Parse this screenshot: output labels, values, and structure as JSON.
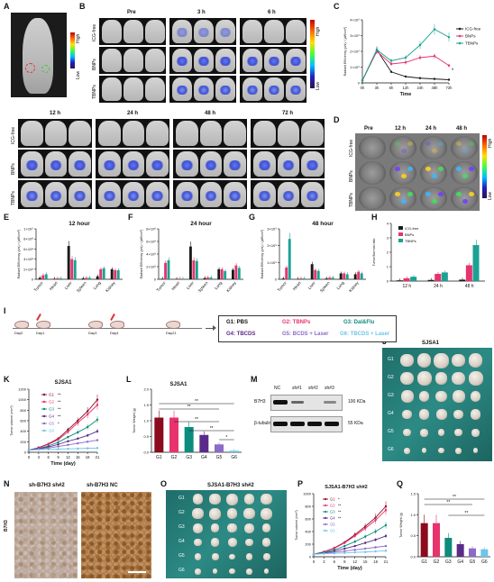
{
  "panels": {
    "A": "A",
    "B": "B",
    "C": "C",
    "D": "D",
    "E": "E",
    "F": "F",
    "G": "G",
    "H": "H",
    "I": "I",
    "J": "J",
    "K": "K",
    "L": "L",
    "M": "M",
    "N": "N",
    "O": "O",
    "P": "P",
    "Q": "Q"
  },
  "colorbar": {
    "high": "High",
    "low": "Low"
  },
  "panelB": {
    "times_top": [
      "Pre",
      "3 h",
      "6 h"
    ],
    "times_bottom": [
      "12 h",
      "24 h",
      "48 h",
      "72 h"
    ],
    "rows": [
      "ICG-free",
      "BNPs",
      "TBNPs"
    ]
  },
  "panelD": {
    "times": [
      "Pre",
      "12 h",
      "24 h",
      "48 h"
    ],
    "rows": [
      "ICG-free",
      "BNPs",
      "TBNPs"
    ]
  },
  "colors": {
    "icg": "#1a1a1a",
    "bnp": "#e8336d",
    "tbnp": "#1aa294",
    "g1": "#8b0a1e",
    "g2": "#e8336d",
    "g3": "#0c8c7c",
    "g4": "#5a2a8a",
    "g5": "#8a6bc8",
    "g6": "#6fc4e8"
  },
  "panelI": {
    "days": [
      "Day0",
      "Day1",
      "Day3",
      "Day4",
      "Day21"
    ],
    "groups": [
      {
        "label": "G1: PBS",
        "color": "#111111"
      },
      {
        "label": "G2: TBNPs",
        "color": "#e8336d"
      },
      {
        "label": "G3: Dal&Flu",
        "color": "#0c8c7c"
      },
      {
        "label": "G4: TBCDS",
        "color": "#5a2a8a"
      },
      {
        "label": "G5: BCDS + Laser",
        "color": "#8a6bc8"
      },
      {
        "label": "G6: TBCDS + Laser",
        "color": "#6fc4e8"
      }
    ]
  },
  "panelJ": {
    "title": "SJSA1",
    "rows": [
      "G1",
      "G2",
      "G3",
      "G4",
      "G5",
      "G6"
    ]
  },
  "panelO": {
    "title": "SJSA1-B7H3 sh#2",
    "rows": [
      "G1",
      "G2",
      "G3",
      "G4",
      "G5",
      "G6"
    ]
  },
  "panelM": {
    "lanes": [
      "NC",
      "sh#1",
      "sh#2",
      "sh#3"
    ],
    "proteins": [
      "B7H3",
      "β-tubulin"
    ],
    "sizes": [
      "100 KDa",
      "55 KDa"
    ]
  },
  "panelN": {
    "labels": [
      "sh-B7H3 sh#2",
      "sh-B7H3 NC"
    ],
    "ylabel": "B7H3"
  },
  "chart_data": [
    {
      "id": "C",
      "type": "line",
      "xlabel": "Time",
      "ylabel": "Radiant Efficiency (p/s) / (µW/cm²)",
      "categories": [
        "0h",
        "3h",
        "6h",
        "12h",
        "24h",
        "48h",
        "72h"
      ],
      "yticks": [
        "0",
        "1×10⁹",
        "2×10⁹",
        "3×10⁹",
        "4×10⁹"
      ],
      "ylim": [
        0,
        4
      ],
      "series": [
        {
          "name": "ICG-free",
          "values": [
            0.15,
            2.1,
            0.7,
            0.4,
            0.3,
            0.25,
            0.2
          ]
        },
        {
          "name": "BNPs",
          "values": [
            0.15,
            2.0,
            1.2,
            1.3,
            1.6,
            1.7,
            1.1
          ]
        },
        {
          "name": "TBNPs",
          "values": [
            0.15,
            2.1,
            1.4,
            1.6,
            2.4,
            3.4,
            2.9
          ]
        }
      ],
      "annotation": "*"
    },
    {
      "id": "E",
      "type": "bar",
      "title": "12 hour",
      "ylabel": "Radiant Efficiency (p/s) / (µW/cm²)",
      "categories": [
        "Tumor",
        "Heart",
        "Liver",
        "Spleen",
        "Lung",
        "Kidney"
      ],
      "yticks": [
        "0",
        "2×10⁸",
        "4×10⁸",
        "6×10⁸",
        "8×10⁸",
        "1×10⁹"
      ],
      "ylim": [
        0,
        1
      ],
      "series": [
        {
          "name": "ICG-free",
          "values": [
            0.03,
            0.01,
            0.66,
            0.02,
            0.06,
            0.2
          ]
        },
        {
          "name": "BNPs",
          "values": [
            0.08,
            0.02,
            0.4,
            0.03,
            0.2,
            0.18
          ]
        },
        {
          "name": "TBNPs",
          "values": [
            0.1,
            0.02,
            0.38,
            0.03,
            0.22,
            0.18
          ]
        }
      ]
    },
    {
      "id": "F",
      "type": "bar",
      "title": "24 hour",
      "ylabel": "Radiant Efficiency (p/s) / (µW/cm²)",
      "categories": [
        "Tumor",
        "Heart",
        "Liver",
        "Spleen",
        "Lung",
        "Kidney"
      ],
      "yticks": [
        "0",
        "2×10⁸",
        "4×10⁸",
        "6×10⁸",
        "8×10⁸"
      ],
      "ylim": [
        0,
        8
      ],
      "series": [
        {
          "name": "ICG-free",
          "values": [
            0.1,
            0.05,
            5.2,
            0.2,
            1.6,
            1.5
          ]
        },
        {
          "name": "BNPs",
          "values": [
            2.6,
            0.1,
            3.0,
            0.3,
            1.6,
            2.2
          ]
        },
        {
          "name": "TBNPs",
          "values": [
            3.0,
            0.1,
            2.9,
            0.3,
            1.3,
            1.8
          ]
        }
      ]
    },
    {
      "id": "G",
      "type": "bar",
      "title": "48 hour",
      "ylabel": "Radiant Efficiency (p/s) / (µW/cm²)",
      "categories": [
        "Tumor",
        "Heart",
        "Liver",
        "Spleen",
        "Lung",
        "Kidney"
      ],
      "yticks": [
        "0",
        "1×10⁹",
        "2×10⁹",
        "3×10⁹"
      ],
      "ylim": [
        0,
        3
      ],
      "series": [
        {
          "name": "ICG-free",
          "values": [
            0.05,
            0.02,
            0.9,
            0.05,
            0.35,
            0.3
          ]
        },
        {
          "name": "BNPs",
          "values": [
            0.7,
            0.05,
            0.55,
            0.1,
            0.35,
            0.45
          ]
        },
        {
          "name": "TBNPs",
          "values": [
            2.4,
            0.05,
            0.5,
            0.1,
            0.3,
            0.35
          ]
        }
      ]
    },
    {
      "id": "H",
      "type": "bar",
      "ylabel": "Tumor/Normal ratio",
      "categories": [
        "12 h",
        "24 h",
        "48 h"
      ],
      "yticks": [
        "0",
        "1",
        "2",
        "3",
        "4"
      ],
      "ylim": [
        0,
        4
      ],
      "series": [
        {
          "name": "ICG-free",
          "values": [
            0.05,
            0.08,
            0.1
          ]
        },
        {
          "name": "BNPs",
          "values": [
            0.2,
            0.5,
            1.1
          ]
        },
        {
          "name": "TBNPs",
          "values": [
            0.3,
            0.6,
            2.5
          ]
        }
      ]
    },
    {
      "id": "K",
      "type": "line",
      "title": "SJSA1",
      "xlabel": "Time (day)",
      "ylabel": "Tumor volume (mm³)",
      "x": [
        0,
        3,
        6,
        9,
        12,
        15,
        18,
        21
      ],
      "xticks": [
        "0",
        "3",
        "6",
        "9",
        "12",
        "15",
        "18",
        "21"
      ],
      "yticks": [
        "0",
        "200",
        "400",
        "600",
        "800",
        "1000",
        "1200"
      ],
      "ylim": [
        0,
        1200
      ],
      "series": [
        {
          "name": "G1",
          "sig": "**",
          "values": [
            40,
            90,
            160,
            260,
            430,
            600,
            780,
            1000
          ]
        },
        {
          "name": "G2",
          "sig": "**",
          "values": [
            40,
            85,
            150,
            240,
            390,
            560,
            720,
            900
          ]
        },
        {
          "name": "G3",
          "sig": "**",
          "values": [
            40,
            75,
            120,
            190,
            290,
            380,
            480,
            620
          ]
        },
        {
          "name": "G4",
          "sig": "**",
          "values": [
            40,
            70,
            100,
            150,
            210,
            260,
            320,
            400
          ]
        },
        {
          "name": "G5",
          "sig": "*",
          "values": [
            40,
            60,
            80,
            110,
            140,
            170,
            200,
            230
          ]
        },
        {
          "name": "G6",
          "sig": "",
          "values": [
            40,
            50,
            55,
            60,
            65,
            70,
            75,
            80
          ]
        }
      ]
    },
    {
      "id": "L",
      "type": "bar",
      "title": "SJSA1",
      "ylabel": "Tumor Weight (g)",
      "categories": [
        "G1",
        "G2",
        "G3",
        "G4",
        "G5",
        "G6"
      ],
      "yticks": [
        "0.0",
        "0.5",
        "1.0",
        "1.5",
        "2.0"
      ],
      "ylim": [
        0,
        2
      ],
      "values": [
        1.1,
        1.1,
        0.8,
        0.55,
        0.25,
        0.05
      ],
      "annotations": [
        "**",
        "**",
        "**",
        "**",
        "*"
      ]
    },
    {
      "id": "P",
      "type": "line",
      "title": "SJSA1-B7H3 sh#2",
      "xlabel": "Time (day)",
      "ylabel": "Tumor volume (mm³)",
      "x": [
        0,
        3,
        6,
        9,
        12,
        15,
        18,
        21
      ],
      "xticks": [
        "0",
        "3",
        "6",
        "9",
        "12",
        "15",
        "18",
        "21"
      ],
      "yticks": [
        "0",
        "200",
        "400",
        "600",
        "800",
        "1000"
      ],
      "ylim": [
        0,
        1000
      ],
      "series": [
        {
          "name": "G1",
          "sig": "*",
          "values": [
            40,
            80,
            140,
            230,
            350,
            480,
            620,
            800
          ]
        },
        {
          "name": "G2",
          "sig": "**",
          "values": [
            40,
            80,
            135,
            220,
            330,
            450,
            580,
            740
          ]
        },
        {
          "name": "G3",
          "sig": "**",
          "values": [
            40,
            70,
            110,
            170,
            240,
            320,
            400,
            500
          ]
        },
        {
          "name": "G4",
          "sig": "**",
          "values": [
            40,
            60,
            90,
            130,
            170,
            220,
            270,
            330
          ]
        },
        {
          "name": "G5",
          "sig": "",
          "values": [
            40,
            55,
            70,
            90,
            110,
            130,
            150,
            170
          ]
        },
        {
          "name": "G6",
          "sig": "",
          "values": [
            40,
            50,
            55,
            60,
            70,
            75,
            85,
            95
          ]
        }
      ]
    },
    {
      "id": "Q",
      "type": "bar",
      "ylabel": "Tumor Weight (g)",
      "categories": [
        "G1",
        "G2",
        "G3",
        "G4",
        "G5",
        "G6"
      ],
      "yticks": [
        "0.0",
        "0.5",
        "1.0",
        "1.5"
      ],
      "ylim": [
        0,
        1.5
      ],
      "values": [
        0.8,
        0.8,
        0.45,
        0.3,
        0.2,
        0.18
      ],
      "annotations": [
        "**",
        "**",
        "**"
      ]
    }
  ]
}
